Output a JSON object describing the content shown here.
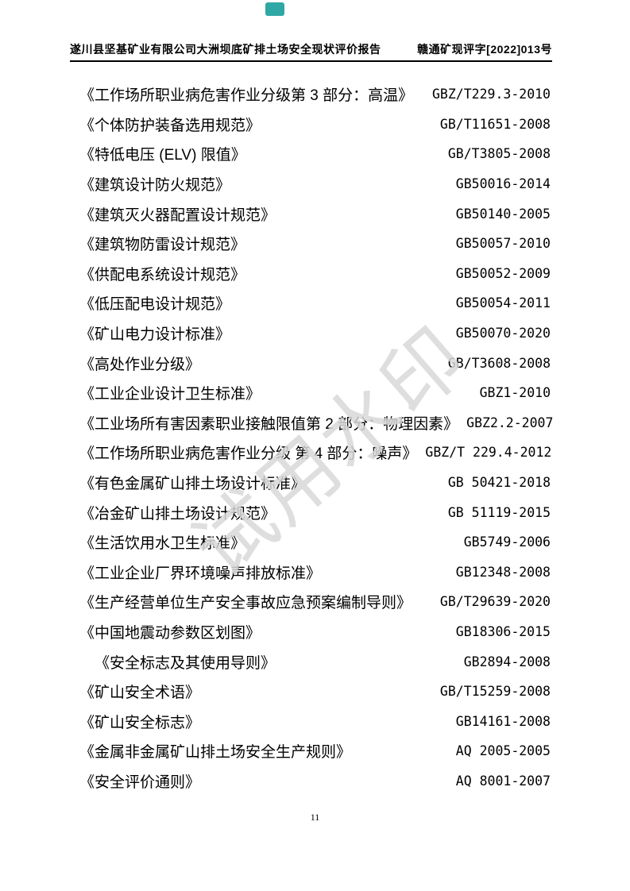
{
  "page": {
    "number": "11"
  },
  "badge": {
    "color": "#2fa7a5"
  },
  "header": {
    "left_title": "遂川县坚基矿业有限公司大洲坝底矿排土场安全现状评价报告",
    "right_doc_number": "赣通矿现评字[2022]013号"
  },
  "watermark": {
    "text": "试用水印",
    "color": "#d9d9d9"
  },
  "standards_list": {
    "items": [
      {
        "title": "《工作场所职业病危害作业分级第 3 部分：高温》",
        "code": "GBZ/T229.3-2010",
        "indent": false
      },
      {
        "title": "《个体防护装备选用规范》",
        "code": "GB/T11651-2008",
        "indent": false
      },
      {
        "title": "《特低电压 (ELV) 限值》",
        "code": "GB/T3805-2008",
        "indent": false
      },
      {
        "title": "《建筑设计防火规范》",
        "code": "GB50016-2014",
        "indent": false
      },
      {
        "title": "《建筑灭火器配置设计规范》",
        "code": "GB50140-2005",
        "indent": false
      },
      {
        "title": "《建筑物防雷设计规范》",
        "code": "GB50057-2010",
        "indent": false
      },
      {
        "title": "《供配电系统设计规范》",
        "code": "GB50052-2009",
        "indent": false
      },
      {
        "title": "《低压配电设计规范》",
        "code": "GB50054-2011",
        "indent": false
      },
      {
        "title": "《矿山电力设计标准》",
        "code": "GB50070-2020",
        "indent": false
      },
      {
        "title": "《高处作业分级》",
        "code": "GB/T3608-2008",
        "indent": false
      },
      {
        "title": "《工业企业设计卫生标准》",
        "code": "GBZ1-2010",
        "indent": false
      },
      {
        "title": "《工业场所有害因素职业接触限值第 2 部分：物理因素》",
        "code": "GBZ2.2-2007",
        "indent": false
      },
      {
        "title": "《工作场所职业病危害作业分级 第 4 部分：噪声》",
        "code": "GBZ/T 229.4-2012",
        "indent": false
      },
      {
        "title": "《有色金属矿山排土场设计标准》",
        "code": "GB 50421-2018",
        "indent": false
      },
      {
        "title": "《冶金矿山排土场设计规范》",
        "code": "GB 51119-2015",
        "indent": false
      },
      {
        "title": "《生活饮用水卫生标准》",
        "code": "GB5749-2006",
        "indent": false
      },
      {
        "title": "《工业企业厂界环境噪声排放标准》",
        "code": "GB12348-2008",
        "indent": false
      },
      {
        "title": "《生产经营单位生产安全事故应急预案编制导则》",
        "code": "GB/T29639-2020",
        "indent": false
      },
      {
        "title": "《中国地震动参数区划图》",
        "code": "GB18306-2015",
        "indent": false
      },
      {
        "title": "《安全标志及其使用导则》",
        "code": "GB2894-2008",
        "indent": true
      },
      {
        "title": "《矿山安全术语》",
        "code": "GB/T15259-2008",
        "indent": false
      },
      {
        "title": "《矿山安全标志》",
        "code": "GB14161-2008",
        "indent": false
      },
      {
        "title": "《金属非金属矿山排土场安全生产规则》",
        "code": "AQ 2005-2005",
        "indent": false
      },
      {
        "title": "《安全评价通则》",
        "code": "AQ 8001-2007",
        "indent": false
      }
    ]
  }
}
